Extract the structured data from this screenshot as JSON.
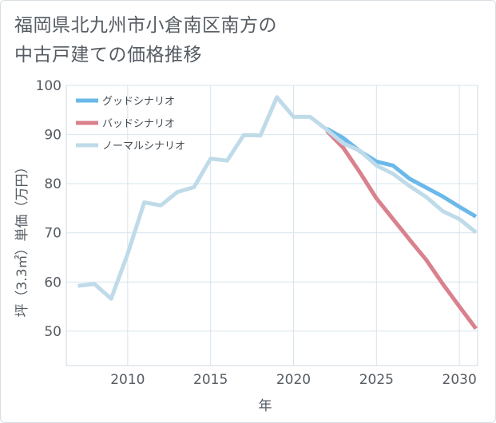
{
  "title_line1": "福岡県北九州市小倉南区南方の",
  "title_line2": "中古戸建ての価格推移",
  "chart_data": {
    "type": "line",
    "title": "福岡県北九州市小倉南区南方の中古戸建ての価格推移",
    "xlabel": "年",
    "ylabel": "坪（3.3㎡）単価（万円）",
    "xlim": [
      2006.3,
      2031.1
    ],
    "ylim": [
      43,
      100
    ],
    "xticks": [
      2010,
      2015,
      2020,
      2025,
      2030
    ],
    "yticks": [
      50,
      60,
      70,
      80,
      90,
      100
    ],
    "grid": true,
    "legend_position": "top-left",
    "series": [
      {
        "name": "グッドシナリオ",
        "color": "#6bb8ea",
        "x": [
          2022,
          2023,
          2024,
          2025,
          2026,
          2027,
          2028,
          2029,
          2030,
          2031
        ],
        "y": [
          91.2,
          89.3,
          86.6,
          84.5,
          83.7,
          81.0,
          79.2,
          77.4,
          75.3,
          73.3
        ]
      },
      {
        "name": "バッドシナリオ",
        "color": "#d9818d",
        "x": [
          2022,
          2023,
          2024,
          2025,
          2026,
          2027,
          2028,
          2029,
          2030,
          2031
        ],
        "y": [
          90.8,
          87.3,
          82.3,
          77.0,
          72.8,
          68.6,
          64.5,
          59.6,
          55.0,
          50.5
        ]
      },
      {
        "name": "ノーマルシナリオ",
        "color": "#bfdbe9",
        "x": [
          2007,
          2008,
          2009,
          2010,
          2011,
          2012,
          2013,
          2014,
          2015,
          2016,
          2017,
          2018,
          2019,
          2020,
          2021,
          2022,
          2023,
          2024,
          2025,
          2026,
          2027,
          2028,
          2029,
          2030,
          2031
        ],
        "y": [
          59.2,
          59.6,
          56.6,
          65.7,
          76.2,
          75.6,
          78.3,
          79.3,
          85.1,
          84.7,
          89.9,
          89.8,
          97.6,
          93.6,
          93.6,
          91.0,
          88.2,
          86.7,
          83.7,
          82.0,
          79.5,
          77.3,
          74.4,
          72.8,
          70.1
        ]
      }
    ]
  }
}
